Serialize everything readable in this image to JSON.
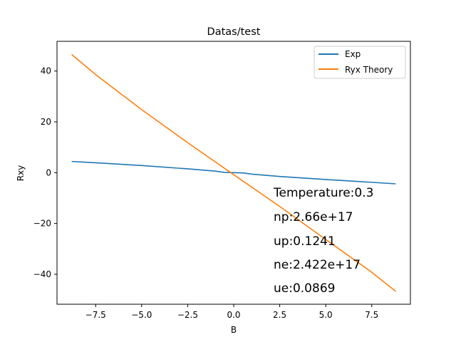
{
  "chart_data": {
    "type": "line",
    "title": "Datas/test",
    "xlabel": "B",
    "ylabel": "Rxy",
    "xlim": [
      -9.6,
      9.6
    ],
    "ylim": [
      -51.8,
      51.7
    ],
    "xticks": [
      -7.5,
      -5.0,
      -2.5,
      0.0,
      2.5,
      5.0,
      7.5
    ],
    "xtick_labels": [
      "−7.5",
      "−5.0",
      "−2.5",
      "0.0",
      "2.5",
      "5.0",
      "7.5"
    ],
    "yticks": [
      40,
      20,
      0,
      -20,
      -40
    ],
    "ytick_labels": [
      "40",
      "20",
      "0",
      "−20",
      "−40"
    ],
    "grid": false,
    "legend_position": "top-right",
    "series": [
      {
        "name": "Exp",
        "color": "#1f77b4",
        "x": [
          -8.8,
          -7.5,
          -5.0,
          -2.5,
          -1.0,
          -0.5,
          0.0,
          0.5,
          1.0,
          2.5,
          5.0,
          7.5,
          8.8
        ],
        "y": [
          4.4,
          3.9,
          2.8,
          1.5,
          0.6,
          0.1,
          0.0,
          -0.1,
          -0.6,
          -1.5,
          -2.7,
          -3.8,
          -4.4
        ]
      },
      {
        "name": "Ryx Theory",
        "color": "#ff7f0e",
        "x": [
          -8.8,
          -7.5,
          -5.0,
          -2.5,
          0.0,
          2.5,
          5.0,
          7.5,
          8.8
        ],
        "y": [
          46.5,
          38.6,
          24.8,
          11.8,
          -0.8,
          -13.3,
          -26.3,
          -39.2,
          -46.7
        ]
      }
    ],
    "annotations": [
      "Temperature:0.3",
      "np:2.66e+17",
      "up:0.1241",
      "ne:2.422e+17",
      "ue:0.0869"
    ]
  }
}
